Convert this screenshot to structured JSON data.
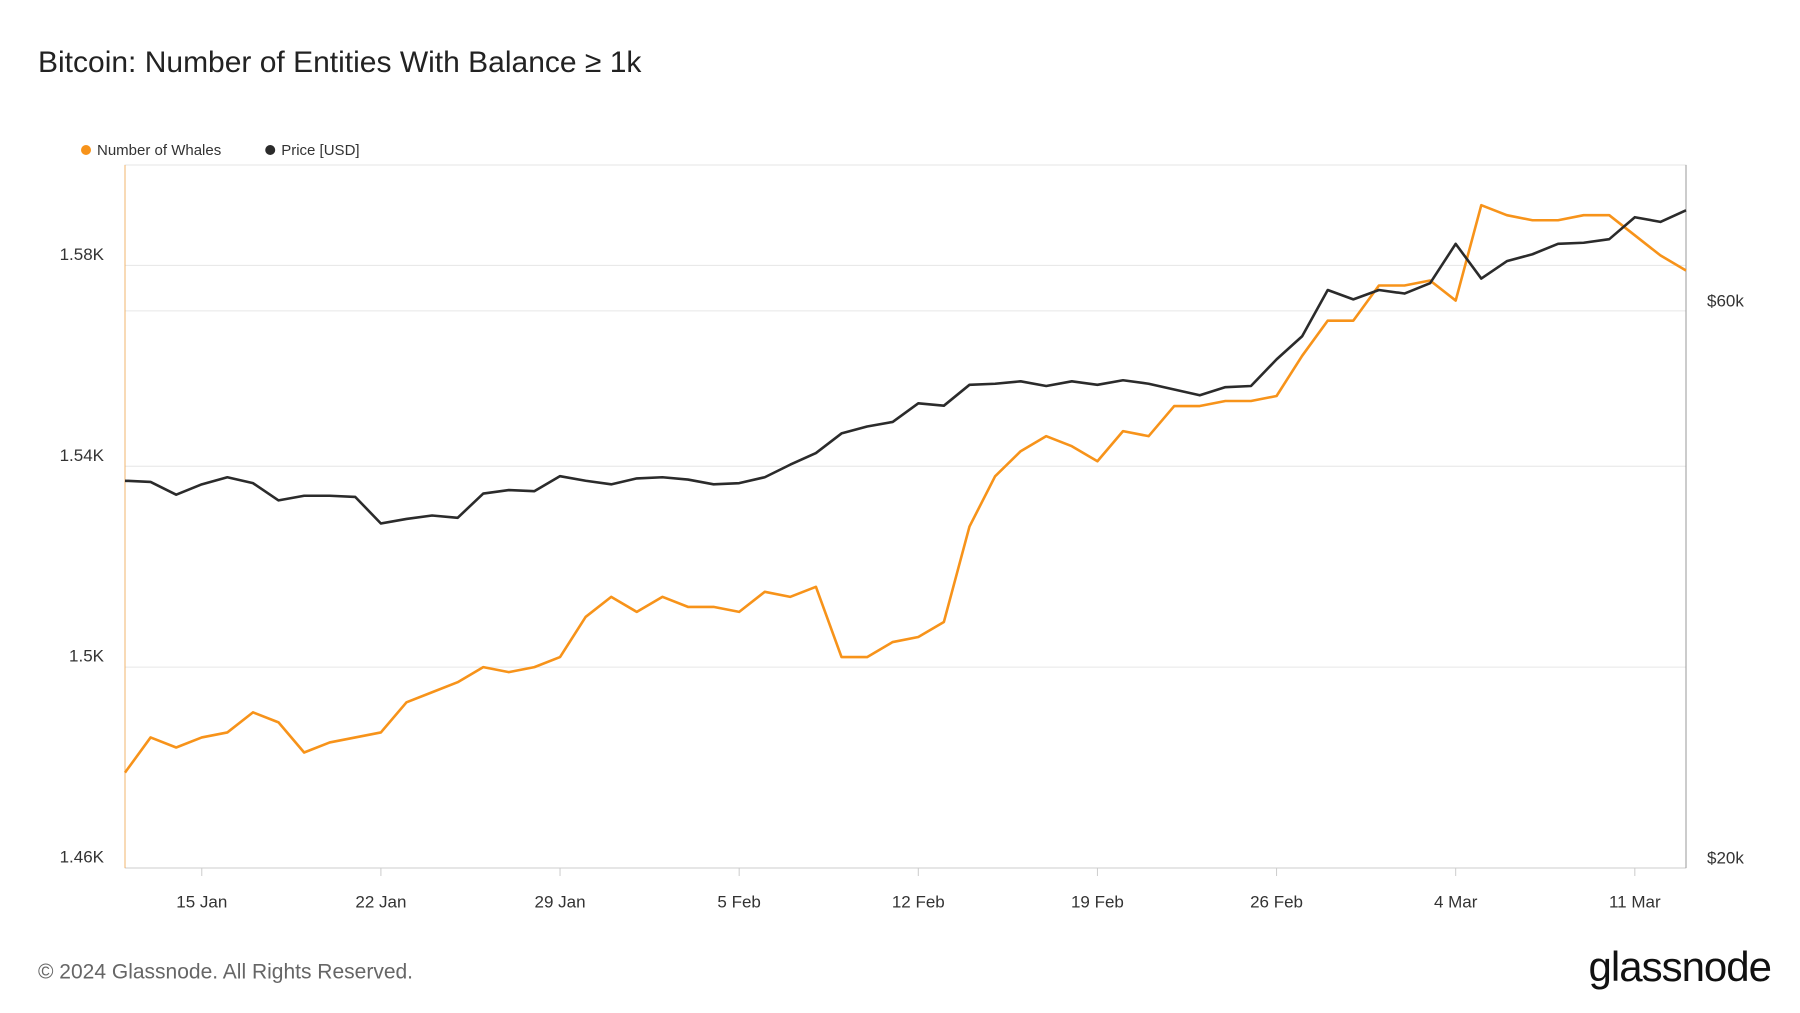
{
  "chart_data": {
    "type": "line",
    "title": "Bitcoin: Number of Entities With Balance ≥ 1k",
    "footer": "© 2024 Glassnode. All Rights Reserved.",
    "brand": "glassnode",
    "x": [
      "12 Jan",
      "13 Jan",
      "14 Jan",
      "15 Jan",
      "16 Jan",
      "17 Jan",
      "18 Jan",
      "19 Jan",
      "20 Jan",
      "21 Jan",
      "22 Jan",
      "23 Jan",
      "24 Jan",
      "25 Jan",
      "26 Jan",
      "27 Jan",
      "28 Jan",
      "29 Jan",
      "30 Jan",
      "31 Jan",
      "1 Feb",
      "2 Feb",
      "3 Feb",
      "4 Feb",
      "5 Feb",
      "6 Feb",
      "7 Feb",
      "8 Feb",
      "9 Feb",
      "10 Feb",
      "11 Feb",
      "12 Feb",
      "13 Feb",
      "14 Feb",
      "15 Feb",
      "16 Feb",
      "17 Feb",
      "18 Feb",
      "19 Feb",
      "20 Feb",
      "21 Feb",
      "22 Feb",
      "23 Feb",
      "24 Feb",
      "25 Feb",
      "26 Feb",
      "27 Feb",
      "28 Feb",
      "29 Feb",
      "1 Mar",
      "2 Mar",
      "3 Mar",
      "4 Mar",
      "5 Mar",
      "6 Mar",
      "7 Mar",
      "8 Mar",
      "9 Mar",
      "10 Mar",
      "11 Mar",
      "12 Mar",
      "13 Mar"
    ],
    "xticks": [
      "15 Jan",
      "22 Jan",
      "29 Jan",
      "5 Feb",
      "12 Feb",
      "19 Feb",
      "26 Feb",
      "4 Mar",
      "11 Mar"
    ],
    "series": [
      {
        "name": "Number of Whales",
        "color": "#f7931a",
        "values": [
          1479,
          1486,
          1484,
          1486,
          1487,
          1491,
          1489,
          1483,
          1485,
          1486,
          1487,
          1493,
          1495,
          1497,
          1500,
          1499,
          1500,
          1502,
          1510,
          1514,
          1511,
          1514,
          1512,
          1512,
          1511,
          1515,
          1514,
          1516,
          1502,
          1502,
          1505,
          1506,
          1509,
          1528,
          1538,
          1543,
          1546,
          1544,
          1541,
          1547,
          1546,
          1552,
          1552,
          1553,
          1553,
          1554,
          1562,
          1569,
          1569,
          1576,
          1576,
          1577,
          1573,
          1592,
          1590,
          1589,
          1589,
          1590,
          1590,
          1586,
          1582,
          1579
        ]
      },
      {
        "name": "Price [USD]",
        "color": "#2b2b2b",
        "axis": "y2",
        "values": [
          42920,
          42820,
          41760,
          42620,
          43220,
          42720,
          41290,
          41670,
          41670,
          41570,
          39450,
          39810,
          40080,
          39900,
          41850,
          42140,
          42050,
          43310,
          42920,
          42620,
          43120,
          43220,
          43020,
          42620,
          42720,
          43220,
          44310,
          45330,
          47120,
          47770,
          48200,
          50000,
          49770,
          51860,
          51970,
          52220,
          51740,
          52220,
          51860,
          52330,
          51970,
          51380,
          50800,
          51620,
          51740,
          54530,
          57070,
          62520,
          61380,
          62520,
          62090,
          63370,
          68480,
          63950,
          66180,
          67090,
          68480,
          68630,
          69110,
          72170,
          71510,
          73160
        ]
      }
    ],
    "ylim": [
      1460,
      1600
    ],
    "yticks": [
      {
        "value": 1460,
        "label": "1.46K"
      },
      {
        "value": 1500,
        "label": "1.5K"
      },
      {
        "value": 1540,
        "label": "1.54K"
      },
      {
        "value": 1580,
        "label": "1.58K"
      }
    ],
    "y2lim": [
      20000,
      80000
    ],
    "y2scale": "log",
    "y2ticks": [
      {
        "value": 20000,
        "label": "$20k"
      },
      {
        "value": 60000,
        "label": "$60k"
      }
    ],
    "grid": true
  }
}
